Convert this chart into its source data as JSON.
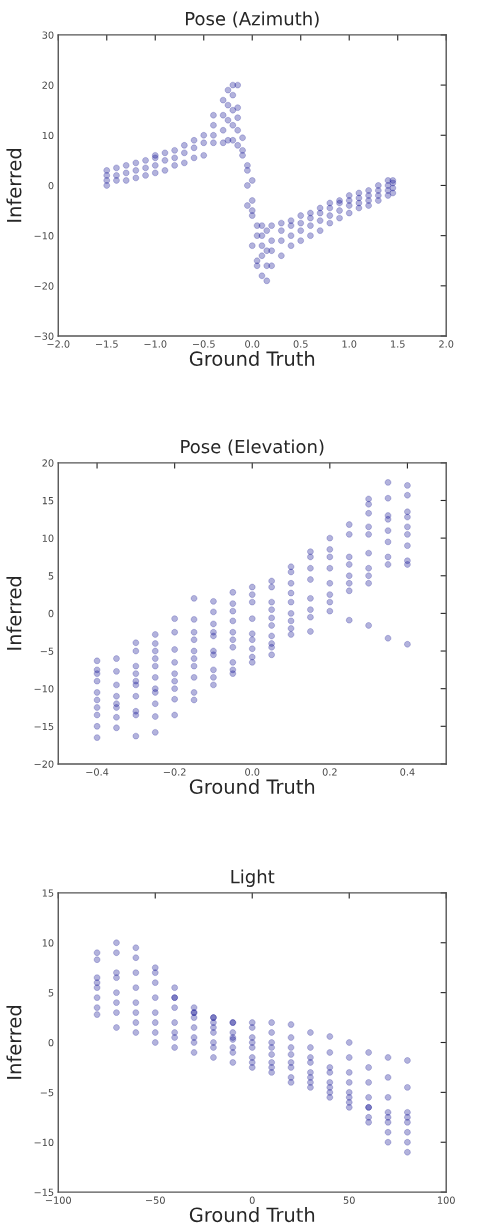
{
  "chart_data": [
    {
      "type": "scatter",
      "title": "Pose (Azimuth)",
      "xlabel": "Ground Truth",
      "ylabel": "Inferred",
      "color": "#00008b",
      "marker": "circle",
      "grid": false,
      "x": [
        -1.5,
        -1.5,
        -1.5,
        -1.5,
        -1.4,
        -1.4,
        -1.4,
        -1.3,
        -1.3,
        -1.3,
        -1.2,
        -1.2,
        -1.2,
        -1.1,
        -1.1,
        -1.1,
        -1.0,
        -1.0,
        -1.0,
        -1.0,
        -0.9,
        -0.9,
        -0.9,
        -0.8,
        -0.8,
        -0.8,
        -0.7,
        -0.7,
        -0.7,
        -0.6,
        -0.6,
        -0.6,
        -0.5,
        -0.5,
        -0.5,
        -0.4,
        -0.4,
        -0.4,
        -0.4,
        -0.3,
        -0.3,
        -0.3,
        -0.3,
        -0.25,
        -0.25,
        -0.25,
        -0.25,
        -0.2,
        -0.2,
        -0.2,
        -0.2,
        -0.2,
        -0.15,
        -0.15,
        -0.15,
        -0.15,
        -0.15,
        -0.1,
        -0.1,
        -0.1,
        -0.05,
        -0.05,
        -0.05,
        -0.05,
        0.0,
        0.0,
        0.0,
        0.0,
        0.0,
        0.05,
        0.05,
        0.05,
        0.05,
        0.1,
        0.1,
        0.1,
        0.1,
        0.1,
        0.15,
        0.15,
        0.15,
        0.15,
        0.2,
        0.2,
        0.2,
        0.2,
        0.3,
        0.3,
        0.3,
        0.3,
        0.4,
        0.4,
        0.4,
        0.4,
        0.5,
        0.5,
        0.5,
        0.5,
        0.6,
        0.6,
        0.6,
        0.6,
        0.7,
        0.7,
        0.7,
        0.7,
        0.8,
        0.8,
        0.8,
        0.8,
        0.9,
        0.9,
        0.9,
        0.9,
        1.0,
        1.0,
        1.0,
        1.0,
        1.1,
        1.1,
        1.1,
        1.1,
        1.2,
        1.2,
        1.2,
        1.2,
        1.3,
        1.3,
        1.3,
        1.3,
        1.4,
        1.4,
        1.4,
        1.4,
        1.45,
        1.45,
        1.45,
        1.45
      ],
      "values": [
        0,
        1,
        2,
        3,
        1,
        2,
        3.5,
        1,
        2.5,
        4,
        1.5,
        3,
        4.5,
        2,
        3.5,
        5,
        2.5,
        4,
        5.5,
        6,
        3,
        5,
        6.5,
        4,
        5.5,
        7,
        4.5,
        6.5,
        8,
        5.5,
        7.5,
        9,
        6,
        8.5,
        10,
        8.5,
        10,
        12,
        14,
        8.5,
        11,
        14,
        17,
        9,
        13,
        16,
        19,
        9,
        12,
        15,
        18,
        20,
        8,
        11,
        13.5,
        15.5,
        20,
        6,
        7,
        9.5,
        -4,
        0,
        3,
        4,
        -12,
        -6,
        -5,
        -3,
        1,
        -16,
        -15,
        -10,
        -8,
        -18,
        -14,
        -12,
        -10,
        -8,
        -19,
        -16,
        -13,
        -9,
        -16,
        -13,
        -11,
        -8,
        -14,
        -11,
        -9,
        -7.5,
        -12,
        -10,
        -8,
        -7,
        -11,
        -9,
        -7.5,
        -6,
        -10,
        -8,
        -6.5,
        -5.5,
        -9,
        -7,
        -5.5,
        -4.5,
        -7.5,
        -6,
        -4.5,
        -3.5,
        -6.5,
        -5,
        -3.5,
        -3,
        -5.5,
        -4,
        -3,
        -2,
        -4.5,
        -3.5,
        -2.5,
        -1.5,
        -4,
        -3,
        -2,
        -1,
        -3,
        -2,
        -1,
        0,
        -2,
        -1,
        0,
        1,
        -1.5,
        -0.5,
        0.5,
        1
      ],
      "xlim": [
        -2.0,
        2.0
      ],
      "ylim": [
        -30,
        30
      ],
      "xticks": [
        {
          "value": -2.0,
          "label": "−2.0"
        },
        {
          "value": -1.5,
          "label": "−1.5"
        },
        {
          "value": -1.0,
          "label": "−1.0"
        },
        {
          "value": -0.5,
          "label": "−0.5"
        },
        {
          "value": 0.0,
          "label": "0.0"
        },
        {
          "value": 0.5,
          "label": "0.5"
        },
        {
          "value": 1.0,
          "label": "1.0"
        },
        {
          "value": 1.5,
          "label": "1.5"
        },
        {
          "value": 2.0,
          "label": "2.0"
        }
      ],
      "yticks": [
        {
          "value": -30,
          "label": "−30"
        },
        {
          "value": -20,
          "label": "−20"
        },
        {
          "value": -10,
          "label": "−10"
        },
        {
          "value": 0,
          "label": "0"
        },
        {
          "value": 10,
          "label": "10"
        },
        {
          "value": 20,
          "label": "20"
        },
        {
          "value": 30,
          "label": "30"
        }
      ]
    },
    {
      "type": "scatter",
      "title": "Pose (Elevation)",
      "xlabel": "Ground Truth",
      "ylabel": "Inferred",
      "color": "#00008b",
      "marker": "circle",
      "grid": false,
      "x": [
        -0.4,
        -0.4,
        -0.4,
        -0.4,
        -0.4,
        -0.4,
        -0.4,
        -0.4,
        -0.4,
        -0.4,
        -0.35,
        -0.35,
        -0.35,
        -0.35,
        -0.35,
        -0.35,
        -0.35,
        -0.35,
        -0.3,
        -0.3,
        -0.3,
        -0.3,
        -0.3,
        -0.3,
        -0.3,
        -0.3,
        -0.3,
        -0.3,
        -0.25,
        -0.25,
        -0.25,
        -0.25,
        -0.25,
        -0.25,
        -0.25,
        -0.25,
        -0.25,
        -0.25,
        -0.25,
        -0.2,
        -0.2,
        -0.2,
        -0.2,
        -0.2,
        -0.2,
        -0.2,
        -0.2,
        -0.2,
        -0.15,
        -0.15,
        -0.15,
        -0.15,
        -0.15,
        -0.15,
        -0.15,
        -0.15,
        -0.15,
        -0.15,
        -0.1,
        -0.1,
        -0.1,
        -0.1,
        -0.1,
        -0.1,
        -0.1,
        -0.1,
        -0.1,
        -0.1,
        -0.05,
        -0.05,
        -0.05,
        -0.05,
        -0.05,
        -0.05,
        -0.05,
        -0.05,
        -0.05,
        -0.05,
        0.0,
        0.0,
        0.0,
        0.0,
        0.0,
        0.0,
        0.0,
        0.0,
        0.0,
        0.05,
        0.05,
        0.05,
        0.05,
        0.05,
        0.05,
        0.05,
        0.05,
        0.05,
        0.05,
        0.1,
        0.1,
        0.1,
        0.1,
        0.1,
        0.1,
        0.1,
        0.1,
        0.1,
        0.15,
        0.15,
        0.15,
        0.15,
        0.15,
        0.15,
        0.15,
        0.15,
        0.2,
        0.2,
        0.2,
        0.2,
        0.2,
        0.2,
        0.2,
        0.2,
        0.25,
        0.25,
        0.25,
        0.25,
        0.25,
        0.25,
        0.25,
        0.25,
        0.3,
        0.3,
        0.3,
        0.3,
        0.3,
        0.3,
        0.3,
        0.3,
        0.3,
        0.3,
        0.35,
        0.35,
        0.35,
        0.35,
        0.35,
        0.35,
        0.35,
        0.35,
        0.35,
        0.4,
        0.4,
        0.4,
        0.4,
        0.4,
        0.4,
        0.4,
        0.4,
        0.4,
        0.4
      ],
      "values": [
        -6.3,
        -7.5,
        -8,
        -9,
        -10.5,
        -11.5,
        -12.5,
        -13.5,
        -15,
        -16.5,
        -6,
        -7.7,
        -9.5,
        -11,
        -12,
        -12.5,
        -13.8,
        -15.2,
        -3.9,
        -5,
        -7,
        -8,
        -9,
        -9.5,
        -11,
        -13,
        -13.5,
        -16.3,
        -2.8,
        -4,
        -5,
        -6,
        -7,
        -8.5,
        -10,
        -10.5,
        -12,
        -13.7,
        -15.8,
        -0.7,
        -2.5,
        -4.8,
        -6.5,
        -8,
        -9,
        -10,
        -11.4,
        -13.5,
        2,
        -0.8,
        -2.5,
        -3.5,
        -5,
        -6,
        -7,
        -8.5,
        -10.5,
        -11.5,
        1.6,
        0.2,
        -1.4,
        -2.5,
        -3,
        -5,
        -5.5,
        -7.5,
        -8.5,
        -9.5,
        2.8,
        1.3,
        0.3,
        -1,
        -2.5,
        -3.5,
        -4.5,
        -6.5,
        -7.5,
        -8,
        3.5,
        2.5,
        1.5,
        -0.7,
        -2.7,
        -3.5,
        -4.7,
        -5.8,
        -6.5,
        4.3,
        3.5,
        1.5,
        0.5,
        -0.6,
        -1.6,
        -3,
        -4,
        -4.5,
        -5.5,
        6.2,
        5.5,
        4,
        2.7,
        1.5,
        0,
        -1,
        -2,
        -2.8,
        8.2,
        7.5,
        6,
        4.5,
        2,
        0.5,
        -0.5,
        -2.4,
        10,
        8.5,
        7.5,
        6,
        4,
        2.5,
        1.5,
        0.3,
        11.8,
        10.5,
        7.5,
        6.5,
        5,
        4,
        3,
        -0.9,
        15.2,
        14.5,
        13.3,
        11.5,
        10.5,
        8,
        6,
        5,
        4,
        -1.6,
        17.4,
        15.3,
        13,
        12.5,
        11,
        9.5,
        7.5,
        6.5,
        -3.3,
        17,
        15.7,
        13.5,
        12.8,
        11.5,
        10.5,
        9,
        7,
        6.5,
        -4.1
      ],
      "xlim": [
        -0.5,
        0.5
      ],
      "ylim": [
        -20,
        20
      ],
      "xticks": [
        {
          "value": -0.4,
          "label": "−0.4"
        },
        {
          "value": -0.2,
          "label": "−0.2"
        },
        {
          "value": 0.0,
          "label": "0.0"
        },
        {
          "value": 0.2,
          "label": "0.2"
        },
        {
          "value": 0.4,
          "label": "0.4"
        }
      ],
      "yticks": [
        {
          "value": -20,
          "label": "−20"
        },
        {
          "value": -15,
          "label": "−15"
        },
        {
          "value": -10,
          "label": "−10"
        },
        {
          "value": -5,
          "label": "−5"
        },
        {
          "value": 0,
          "label": "0"
        },
        {
          "value": 5,
          "label": "5"
        },
        {
          "value": 10,
          "label": "10"
        },
        {
          "value": 15,
          "label": "15"
        },
        {
          "value": 20,
          "label": "20"
        }
      ]
    },
    {
      "type": "scatter",
      "title": "Light",
      "xlabel": "Ground Truth",
      "ylabel": "Inferred",
      "color": "#00008b",
      "marker": "circle",
      "grid": false,
      "x": [
        -80,
        -70,
        -60,
        -50,
        -40,
        -30,
        -20,
        -10,
        0,
        10,
        20,
        30,
        40,
        50,
        60,
        70,
        80,
        -80,
        -70,
        -60,
        -50,
        -40,
        -30,
        -20,
        -10,
        0,
        10,
        20,
        30,
        40,
        50,
        60,
        70,
        80,
        -80,
        -70,
        -60,
        -50,
        -40,
        -30,
        -20,
        -10,
        0,
        10,
        20,
        30,
        40,
        50,
        60,
        70,
        80,
        -80,
        -70,
        -60,
        -50,
        -40,
        -30,
        -20,
        -10,
        0,
        10,
        20,
        30,
        40,
        50,
        60,
        70,
        80,
        -80,
        -70,
        -60,
        -50,
        -40,
        -30,
        -20,
        -10,
        0,
        10,
        20,
        30,
        40,
        50,
        60,
        70,
        80,
        -80,
        -70,
        -60,
        -50,
        -40,
        -30,
        -20,
        -10,
        0,
        10,
        20,
        30,
        40,
        50,
        60,
        70,
        80,
        -80,
        -70,
        -60,
        -50,
        -40,
        -30,
        -20,
        -10,
        0,
        10,
        20,
        30,
        40,
        50,
        60,
        70,
        80,
        -80,
        -70,
        -60,
        -50,
        -40,
        -30,
        -20,
        -10,
        0,
        10,
        20,
        30,
        40,
        50,
        60,
        70,
        80
      ],
      "values": [
        9,
        10,
        9.5,
        7,
        4.5,
        3,
        2.5,
        2,
        2,
        2,
        1.8,
        1,
        0.6,
        0,
        -1,
        -1.5,
        -1.8,
        8.3,
        9,
        8.5,
        7.5,
        5.5,
        3.5,
        2.5,
        2,
        1.5,
        1,
        0.5,
        -0.5,
        -1,
        -1.5,
        -2.5,
        -3.5,
        -4.5,
        6.5,
        7,
        7,
        6,
        4.5,
        3,
        2,
        1,
        0.5,
        0,
        -0.5,
        -1.5,
        -2.5,
        -3,
        -4,
        -5.5,
        -7,
        6,
        6.5,
        5.5,
        4.5,
        3.5,
        2.5,
        1.5,
        0.5,
        0,
        -0.5,
        -1.2,
        -2,
        -3,
        -4,
        -5.5,
        -7,
        -7.5,
        5.5,
        5,
        4,
        3,
        2,
        1.5,
        1,
        0.3,
        -0.5,
        -1.2,
        -2,
        -3,
        -4,
        -5,
        -6.5,
        -7.5,
        -8,
        4.5,
        4,
        3,
        2,
        1,
        0.5,
        0,
        -0.5,
        -1.5,
        -2,
        -2.5,
        -3.5,
        -4.5,
        -5.5,
        -6.5,
        -8,
        -9,
        3.5,
        3,
        2,
        1,
        0.5,
        0,
        -0.5,
        -1,
        -2,
        -2.5,
        -3.5,
        -4,
        -5,
        -6,
        -7.5,
        -9,
        -10,
        2.8,
        1.5,
        1,
        0,
        -0.5,
        -1,
        -1.5,
        -2,
        -2.5,
        -3,
        -4,
        -4.5,
        -5.5,
        -6.5,
        -8,
        -10,
        -11
      ],
      "xlim": [
        -100,
        100
      ],
      "ylim": [
        -15,
        15
      ],
      "xticks": [
        {
          "value": -100,
          "label": "−100"
        },
        {
          "value": -50,
          "label": "−50"
        },
        {
          "value": 0,
          "label": "0"
        },
        {
          "value": 50,
          "label": "50"
        },
        {
          "value": 100,
          "label": "100"
        }
      ],
      "yticks": [
        {
          "value": -15,
          "label": "−15"
        },
        {
          "value": -10,
          "label": "−10"
        },
        {
          "value": -5,
          "label": "−5"
        },
        {
          "value": 0,
          "label": "0"
        },
        {
          "value": 5,
          "label": "5"
        },
        {
          "value": 10,
          "label": "10"
        },
        {
          "value": 15,
          "label": "15"
        }
      ]
    }
  ]
}
